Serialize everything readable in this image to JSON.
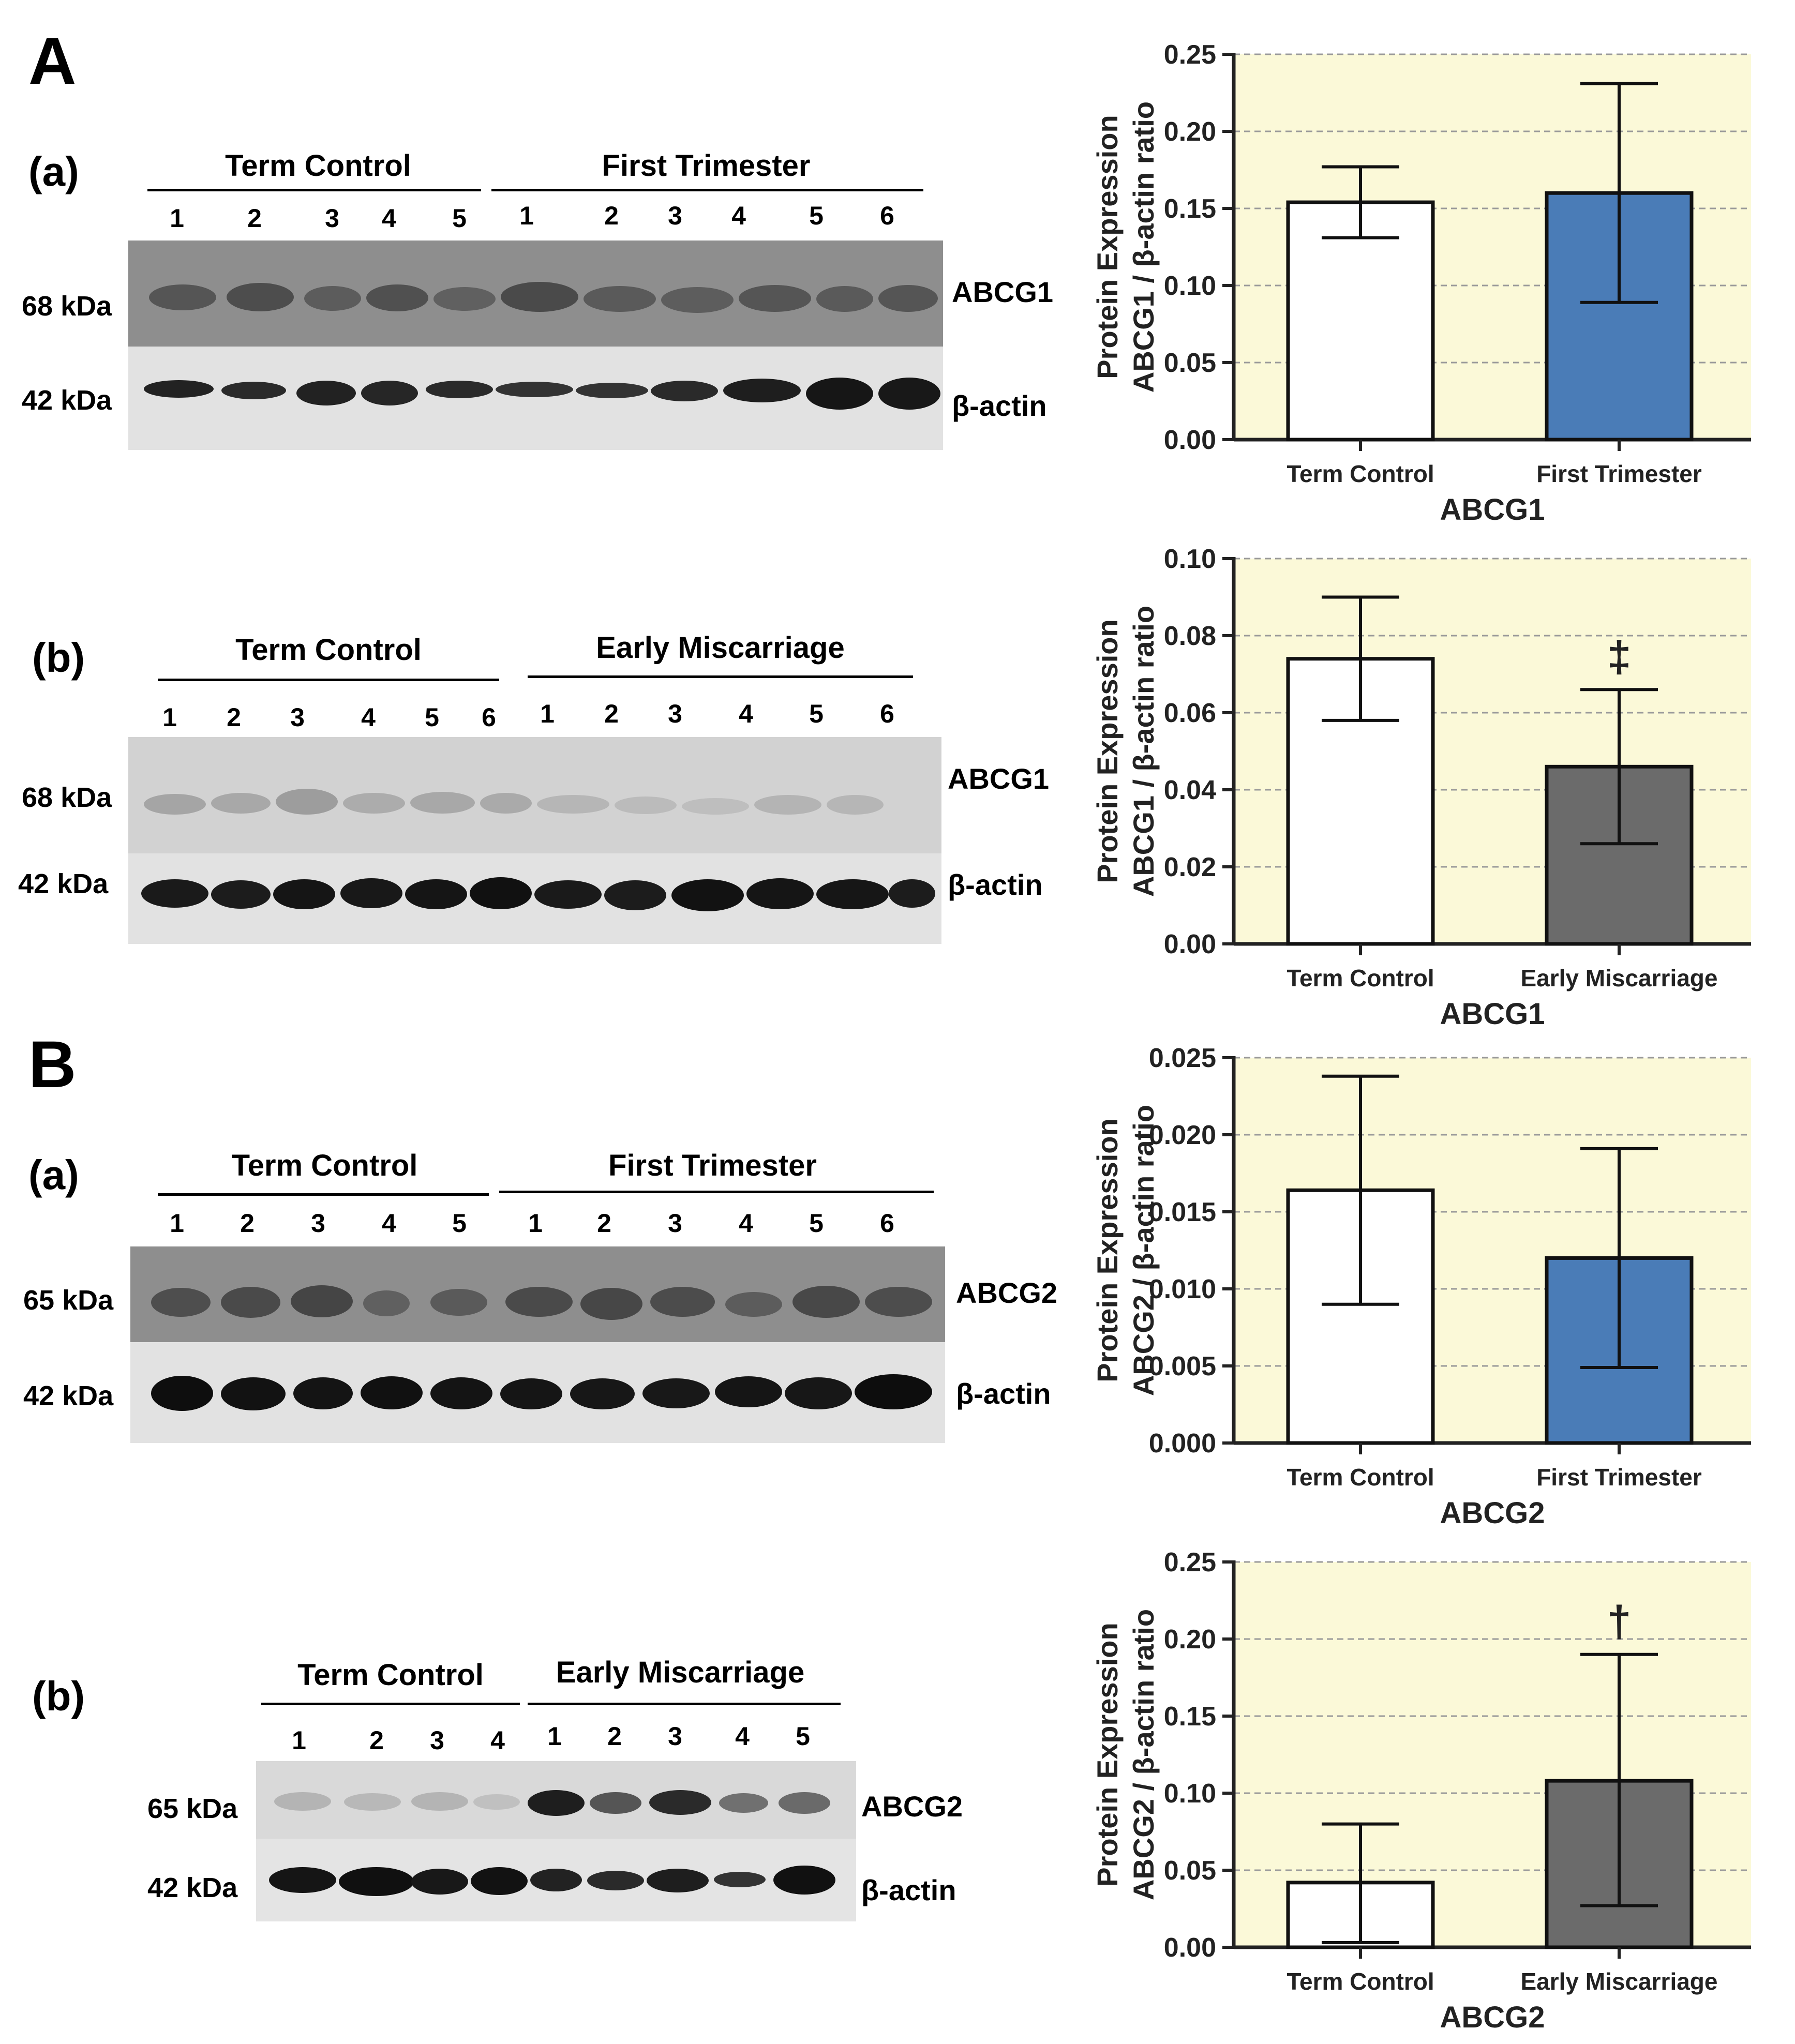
{
  "panel_a_letter": "A",
  "panel_b_letter": "B",
  "colors": {
    "plot_bg": "#fbf9d8",
    "term_control": "#ffffff",
    "first_trimester": "#4a7cb7",
    "early_miscarriage": "#6b6b6b",
    "grid": "#9a9a9a"
  },
  "blots": [
    {
      "sub_label": "(a)",
      "group1_label": "Term Control",
      "group2_label": "First Trimester",
      "lanes1": [
        "1",
        "2",
        "3",
        "4",
        "5"
      ],
      "lanes2": [
        "1",
        "2",
        "3",
        "4",
        "5",
        "6"
      ],
      "kda_top": "68 kDa",
      "kda_bottom": "42 kDa",
      "protein_top": "ABCG1",
      "protein_bottom": "β-actin"
    },
    {
      "sub_label": "(b)",
      "group1_label": "Term Control",
      "group2_label": "Early Miscarriage",
      "lanes1": [
        "1",
        "2",
        "3",
        "4",
        "5",
        "6"
      ],
      "lanes2": [
        "1",
        "2",
        "3",
        "4",
        "5",
        "6"
      ],
      "kda_top": "68 kDa",
      "kda_bottom": "42 kDa",
      "protein_top": "ABCG1",
      "protein_bottom": "β-actin"
    },
    {
      "sub_label": "(a)",
      "group1_label": "Term Control",
      "group2_label": "First Trimester",
      "lanes1": [
        "1",
        "2",
        "3",
        "4",
        "5"
      ],
      "lanes2": [
        "1",
        "2",
        "3",
        "4",
        "5",
        "6"
      ],
      "kda_top": "65 kDa",
      "kda_bottom": "42 kDa",
      "protein_top": "ABCG2",
      "protein_bottom": "β-actin"
    },
    {
      "sub_label": "(b)",
      "group1_label": "Term Control",
      "group2_label": "Early Miscarriage",
      "lanes1": [
        "1",
        "2",
        "3",
        "4"
      ],
      "lanes2": [
        "1",
        "2",
        "3",
        "4",
        "5"
      ],
      "kda_top": "65 kDa",
      "kda_bottom": "42 kDa",
      "protein_top": "ABCG2",
      "protein_bottom": "β-actin"
    }
  ],
  "chart_data": [
    {
      "type": "bar",
      "title": "",
      "xlabel": "ABCG1",
      "ylabel_line1": "Protein Expression",
      "ylabel_line2": "ABCG1 / β-actin ratio",
      "categories": [
        "Term Control",
        "First Trimester"
      ],
      "values": [
        0.154,
        0.16
      ],
      "err_low": [
        0.131,
        0.089
      ],
      "err_high": [
        0.177,
        0.231
      ],
      "bar_colors": [
        "#ffffff",
        "#4a7cb7"
      ],
      "ylim": [
        0,
        0.25
      ],
      "yticks": [
        "0.00",
        "0.05",
        "0.10",
        "0.15",
        "0.20",
        "0.25"
      ],
      "step": 0.05,
      "annotations": [
        "",
        ""
      ],
      "grid": true
    },
    {
      "type": "bar",
      "title": "",
      "xlabel": "ABCG1",
      "ylabel_line1": "Protein Expression",
      "ylabel_line2": "ABCG1 / β-actin ratio",
      "categories": [
        "Term Control",
        "Early Miscarriage"
      ],
      "values": [
        0.074,
        0.046
      ],
      "err_low": [
        0.058,
        0.026
      ],
      "err_high": [
        0.09,
        0.066
      ],
      "bar_colors": [
        "#ffffff",
        "#6b6b6b"
      ],
      "ylim": [
        0,
        0.1
      ],
      "yticks": [
        "0.00",
        "0.02",
        "0.04",
        "0.06",
        "0.08",
        "0.10"
      ],
      "step": 0.02,
      "annotations": [
        "",
        "‡"
      ],
      "grid": true
    },
    {
      "type": "bar",
      "title": "",
      "xlabel": "ABCG2",
      "ylabel_line1": "Protein Expression",
      "ylabel_line2": "ABCG2 / β-actin ratio",
      "categories": [
        "Term Control",
        "First Trimester"
      ],
      "values": [
        0.0164,
        0.012
      ],
      "err_low": [
        0.009,
        0.0049
      ],
      "err_high": [
        0.0238,
        0.0191
      ],
      "bar_colors": [
        "#ffffff",
        "#4a7cb7"
      ],
      "ylim": [
        0,
        0.025
      ],
      "yticks": [
        "0.000",
        "0.005",
        "0.010",
        "0.015",
        "0.020",
        "0.025"
      ],
      "step": 0.005,
      "annotations": [
        "",
        ""
      ],
      "grid": true
    },
    {
      "type": "bar",
      "title": "",
      "xlabel": "ABCG2",
      "ylabel_line1": "Protein Expression",
      "ylabel_line2": "ABCG2 / β-actin ratio",
      "categories": [
        "Term Control",
        "Early Miscarriage"
      ],
      "values": [
        0.042,
        0.108
      ],
      "err_low": [
        0.003,
        0.027
      ],
      "err_high": [
        0.08,
        0.19
      ],
      "bar_colors": [
        "#ffffff",
        "#6b6b6b"
      ],
      "ylim": [
        0,
        0.25
      ],
      "yticks": [
        "0.00",
        "0.05",
        "0.10",
        "0.15",
        "0.20",
        "0.25"
      ],
      "step": 0.05,
      "annotations": [
        "",
        "†"
      ],
      "grid": true
    }
  ]
}
